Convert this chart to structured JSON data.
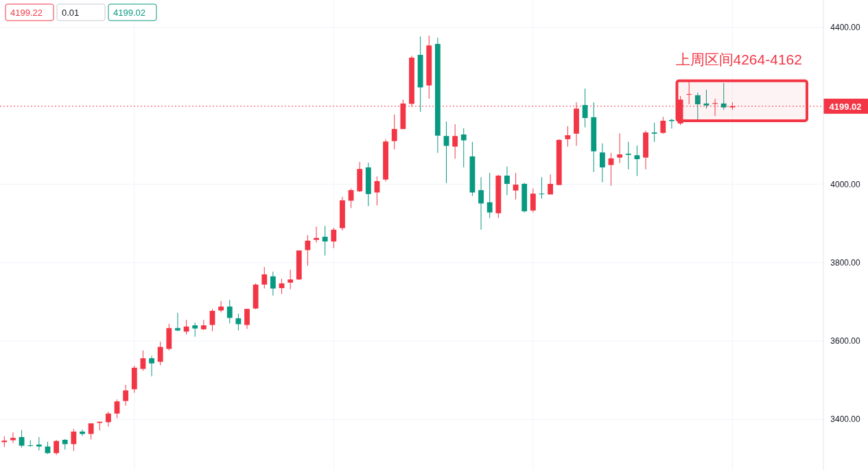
{
  "chart_data": {
    "type": "candlestick",
    "categories": [
      null,
      null,
      null,
      null,
      null,
      null,
      null,
      null,
      null,
      null,
      null,
      null,
      null,
      null,
      null,
      null,
      null,
      null,
      null,
      null,
      null,
      null,
      null,
      null,
      null,
      null,
      null,
      null,
      null,
      null,
      null,
      null,
      null,
      null,
      null,
      null,
      null,
      null,
      null,
      null,
      null,
      null,
      null,
      null,
      null,
      null,
      null,
      null,
      null,
      null,
      null,
      null,
      null,
      null,
      null,
      null,
      null,
      null,
      null,
      null,
      null,
      null,
      null,
      null,
      null,
      null,
      null,
      null,
      null,
      null,
      null,
      null,
      null,
      null,
      null,
      null,
      null,
      null,
      null,
      null,
      null,
      null,
      null,
      null,
      null,
      null,
      null,
      null,
      null,
      null,
      null,
      null,
      null,
      null,
      null
    ],
    "ohlc": [
      [
        3342,
        3357,
        3330,
        3346
      ],
      [
        3347,
        3367,
        3340,
        3353
      ],
      [
        3355,
        3373,
        3328,
        3333
      ],
      [
        3334,
        3347,
        3330,
        3333
      ],
      [
        3336,
        3355,
        3321,
        3331
      ],
      [
        3331,
        3343,
        3312,
        3314
      ],
      [
        3314,
        3348,
        3309,
        3345
      ],
      [
        3348,
        3350,
        3323,
        3337
      ],
      [
        3337,
        3376,
        3319,
        3369
      ],
      [
        3369,
        3374,
        3358,
        3363
      ],
      [
        3363,
        3390,
        3349,
        3390
      ],
      [
        3391,
        3395,
        3372,
        3394
      ],
      [
        3393,
        3420,
        3382,
        3415
      ],
      [
        3415,
        3451,
        3403,
        3446
      ],
      [
        3447,
        3488,
        3435,
        3474
      ],
      [
        3477,
        3537,
        3468,
        3532
      ],
      [
        3529,
        3576,
        3524,
        3556
      ],
      [
        3556,
        3562,
        3510,
        3543
      ],
      [
        3547,
        3598,
        3538,
        3585
      ],
      [
        3580,
        3644,
        3576,
        3633
      ],
      [
        3633,
        3672,
        3625,
        3627
      ],
      [
        3624,
        3654,
        3617,
        3637
      ],
      [
        3640,
        3647,
        3611,
        3632
      ],
      [
        3630,
        3654,
        3628,
        3640
      ],
      [
        3641,
        3682,
        3625,
        3677
      ],
      [
        3678,
        3702,
        3673,
        3688
      ],
      [
        3688,
        3705,
        3645,
        3659
      ],
      [
        3658,
        3670,
        3627,
        3643
      ],
      [
        3641,
        3682,
        3631,
        3682
      ],
      [
        3683,
        3747,
        3681,
        3744
      ],
      [
        3744,
        3789,
        3734,
        3770
      ],
      [
        3765,
        3777,
        3716,
        3734
      ],
      [
        3735,
        3759,
        3720,
        3747
      ],
      [
        3749,
        3782,
        3732,
        3757
      ],
      [
        3757,
        3831,
        3756,
        3831
      ],
      [
        3832,
        3870,
        3792,
        3856
      ],
      [
        3858,
        3892,
        3851,
        3863
      ],
      [
        3866,
        3894,
        3818,
        3854
      ],
      [
        3854,
        3889,
        3837,
        3884
      ],
      [
        3888,
        3968,
        3882,
        3959
      ],
      [
        3958,
        3989,
        3939,
        3985
      ],
      [
        3982,
        4057,
        3980,
        4039
      ],
      [
        4043,
        4055,
        3944,
        3975
      ],
      [
        3979,
        4020,
        3946,
        4008
      ],
      [
        4012,
        4115,
        4007,
        4109
      ],
      [
        4110,
        4178,
        4089,
        4141
      ],
      [
        4141,
        4216,
        4140,
        4206
      ],
      [
        4205,
        4328,
        4198,
        4323
      ],
      [
        4330,
        4377,
        4185,
        4247
      ],
      [
        4252,
        4379,
        4218,
        4354
      ],
      [
        4358,
        4374,
        4080,
        4124
      ],
      [
        4123,
        4160,
        4003,
        4098
      ],
      [
        4096,
        4153,
        4065,
        4123
      ],
      [
        4127,
        4143,
        4043,
        4112
      ],
      [
        4071,
        4108,
        3970,
        3979
      ],
      [
        3985,
        4018,
        3884,
        3951
      ],
      [
        3954,
        4029,
        3914,
        3928
      ],
      [
        3926,
        4024,
        3914,
        4022
      ],
      [
        4022,
        4045,
        3972,
        4001
      ],
      [
        3984,
        4029,
        3961,
        3999
      ],
      [
        4001,
        4004,
        3928,
        3931
      ],
      [
        3933,
        3989,
        3928,
        3976
      ],
      [
        3976,
        4018,
        3963,
        3975
      ],
      [
        3974,
        4025,
        3974,
        4001
      ],
      [
        3998,
        4115,
        3998,
        4113
      ],
      [
        4115,
        4148,
        4096,
        4125
      ],
      [
        4129,
        4209,
        4098,
        4193
      ],
      [
        4202,
        4244,
        4145,
        4169
      ],
      [
        4171,
        4209,
        4031,
        4084
      ],
      [
        4081,
        4104,
        4005,
        4043
      ],
      [
        4049,
        4080,
        3996,
        4066
      ],
      [
        4068,
        4130,
        4054,
        4076
      ],
      [
        4078,
        4108,
        4038,
        4075
      ],
      [
        4074,
        4099,
        4021,
        4064
      ],
      [
        4068,
        4137,
        4038,
        4132
      ],
      [
        4132,
        4157,
        4108,
        4129
      ],
      [
        4131,
        4172,
        4129,
        4162
      ],
      [
        4164,
        4167,
        4142,
        4161
      ],
      [
        4155,
        4225,
        4151,
        4216
      ],
      [
        4229,
        4265,
        4204,
        4230
      ],
      [
        4227,
        4234,
        4162,
        4204
      ],
      [
        4206,
        4241,
        4193,
        4201
      ],
      [
        4205,
        4218,
        4174,
        4207
      ],
      [
        4206,
        4258,
        4190,
        4196
      ],
      [
        4196,
        4209,
        4190,
        4199.02
      ],
      null,
      null,
      null,
      null,
      null,
      null,
      null,
      null,
      null,
      null
    ],
    "colors": [
      "#f23645",
      "#f23645",
      "#089981",
      "#089981",
      "#089981",
      "#089981",
      "#f23645",
      "#089981",
      "#f23645",
      "#089981",
      "#f23645",
      "#f23645",
      "#f23645",
      "#f23645",
      "#f23645",
      "#f23645",
      "#f23645",
      "#089981",
      "#f23645",
      "#f23645",
      "#089981",
      "#f23645",
      "#089981",
      "#f23645",
      "#f23645",
      "#f23645",
      "#089981",
      "#089981",
      "#f23645",
      "#f23645",
      "#f23645",
      "#089981",
      "#f23645",
      "#f23645",
      "#f23645",
      "#f23645",
      "#f23645",
      "#089981",
      "#f23645",
      "#f23645",
      "#f23645",
      "#f23645",
      "#089981",
      "#f23645",
      "#f23645",
      "#f23645",
      "#f23645",
      "#f23645",
      "#089981",
      "#f23645",
      "#089981",
      "#089981",
      "#f23645",
      "#089981",
      "#089981",
      "#089981",
      "#089981",
      "#f23645",
      "#089981",
      "#f23645",
      "#089981",
      "#f23645",
      "#089981",
      "#f23645",
      "#f23645",
      "#f23645",
      "#f23645",
      "#089981",
      "#089981",
      "#089981",
      "#f23645",
      "#f23645",
      "#089981",
      "#089981",
      "#f23645",
      "#089981",
      "#f23645",
      "#089981",
      "#f23645",
      "#f23645",
      "#089981",
      "#089981",
      "#f23645",
      "#089981",
      "#f23645",
      null,
      null,
      null,
      null,
      null,
      null,
      null,
      null,
      null,
      null
    ],
    "ylim": [
      3271,
      4470
    ],
    "yticks": [
      {
        "value": 3400,
        "label": "3400.00"
      },
      {
        "value": 3600,
        "label": "3600.00"
      },
      {
        "value": 3800,
        "label": "3800.00"
      },
      {
        "value": 4000,
        "label": "4000.00"
      },
      {
        "value": 4400,
        "label": "4400.00"
      }
    ],
    "tick_labels": "y",
    "grid": true,
    "ref_lines": [
      {
        "axis": "y",
        "value": 4199.02,
        "label": "4199.02",
        "color": "#f23645",
        "line_style": "dotted"
      }
    ],
    "bands": [
      {
        "axis": "y",
        "from": 4162,
        "to": 4264,
        "label": "上周区间4264-4162",
        "color": "#f23645"
      }
    ],
    "annotations": [
      "4199.22",
      "0.01",
      "4199.02"
    ]
  }
}
